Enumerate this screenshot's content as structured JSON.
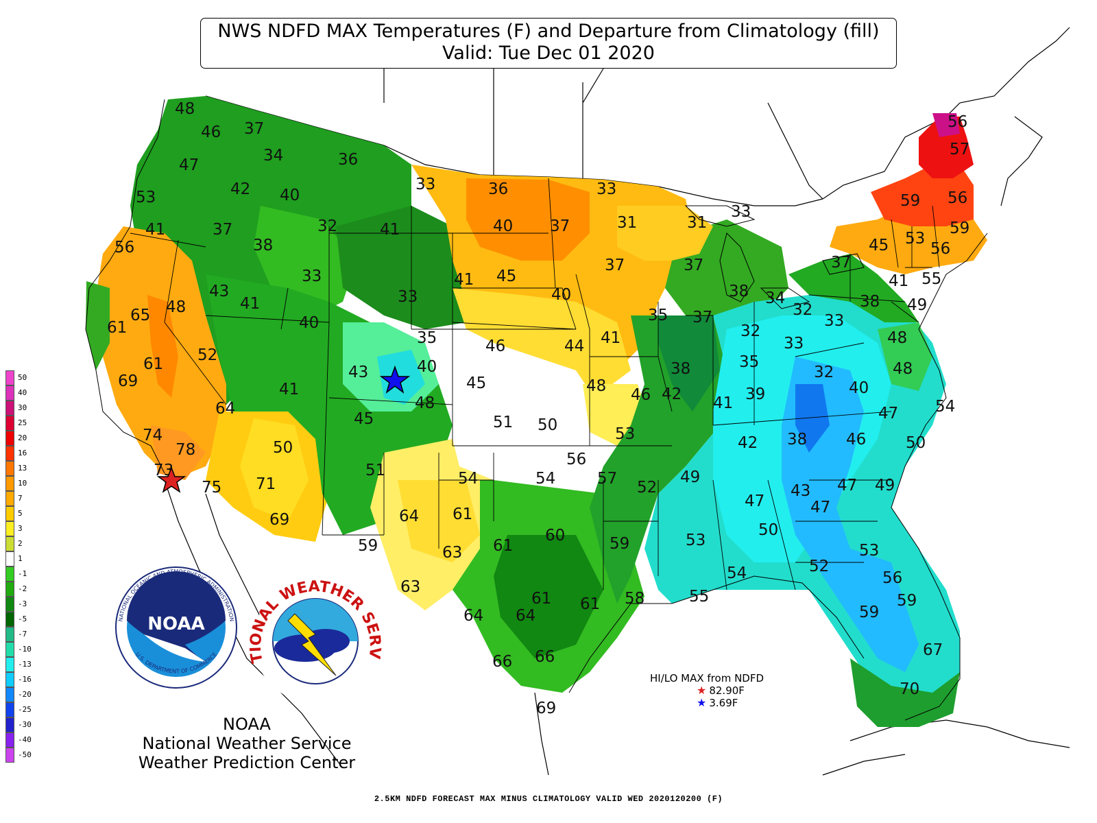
{
  "title": {
    "line1": "NWS NDFD MAX Temperatures (F) and Departure from Climatology (fill)",
    "line2": "Valid: Tue Dec 01 2020"
  },
  "legend": {
    "entries": [
      {
        "label": "50",
        "color": "#ee44cc"
      },
      {
        "label": "40",
        "color": "#dd33bb"
      },
      {
        "label": "30",
        "color": "#cc1177"
      },
      {
        "label": "25",
        "color": "#dd0033"
      },
      {
        "label": "20",
        "color": "#ee0000"
      },
      {
        "label": "16",
        "color": "#ff3300"
      },
      {
        "label": "13",
        "color": "#ff7700"
      },
      {
        "label": "10",
        "color": "#ff9900"
      },
      {
        "label": "7",
        "color": "#ffaa00"
      },
      {
        "label": "5",
        "color": "#ffcc00"
      },
      {
        "label": "3",
        "color": "#ffee22"
      },
      {
        "label": "2",
        "color": "#ccdd33"
      },
      {
        "label": "1",
        "color": "#ffffff"
      },
      {
        "label": "-1",
        "color": "#33cc22"
      },
      {
        "label": "-2",
        "color": "#22aa11"
      },
      {
        "label": "-3",
        "color": "#118811"
      },
      {
        "label": "-5",
        "color": "#006600"
      },
      {
        "label": "-7",
        "color": "#22bb88"
      },
      {
        "label": "-10",
        "color": "#22ddaa"
      },
      {
        "label": "-13",
        "color": "#22eeee"
      },
      {
        "label": "-16",
        "color": "#11ccff"
      },
      {
        "label": "-20",
        "color": "#1188ff"
      },
      {
        "label": "-25",
        "color": "#1144ee"
      },
      {
        "label": "-30",
        "color": "#2222cc"
      },
      {
        "label": "-40",
        "color": "#8822ee"
      },
      {
        "label": "-50",
        "color": "#cc44ee"
      }
    ]
  },
  "temperatures": [
    {
      "text": "48"
    },
    {
      "text": "46"
    },
    {
      "text": "37"
    },
    {
      "text": "47"
    },
    {
      "text": "34"
    },
    {
      "text": "36"
    },
    {
      "text": "53"
    },
    {
      "text": "42"
    },
    {
      "text": "40"
    },
    {
      "text": "33"
    },
    {
      "text": "36"
    },
    {
      "text": "33"
    },
    {
      "text": "56"
    },
    {
      "text": "57"
    },
    {
      "text": "41"
    },
    {
      "text": "37"
    },
    {
      "text": "32"
    },
    {
      "text": "41"
    },
    {
      "text": "40"
    },
    {
      "text": "37"
    },
    {
      "text": "31"
    },
    {
      "text": "31"
    },
    {
      "text": "33"
    },
    {
      "text": "59"
    },
    {
      "text": "56"
    },
    {
      "text": "56"
    },
    {
      "text": "38"
    },
    {
      "text": "53"
    },
    {
      "text": "59"
    },
    {
      "text": "45"
    },
    {
      "text": "56"
    },
    {
      "text": "33"
    },
    {
      "text": "41"
    },
    {
      "text": "45"
    },
    {
      "text": "37"
    },
    {
      "text": "37"
    },
    {
      "text": "37"
    },
    {
      "text": "41"
    },
    {
      "text": "55"
    },
    {
      "text": "43"
    },
    {
      "text": "41"
    },
    {
      "text": "33"
    },
    {
      "text": "40"
    },
    {
      "text": "38"
    },
    {
      "text": "34"
    },
    {
      "text": "32"
    },
    {
      "text": "38"
    },
    {
      "text": "49"
    },
    {
      "text": "65"
    },
    {
      "text": "48"
    },
    {
      "text": "35"
    },
    {
      "text": "37"
    },
    {
      "text": "33"
    },
    {
      "text": "61"
    },
    {
      "text": "40"
    },
    {
      "text": "32"
    },
    {
      "text": "33"
    },
    {
      "text": "48"
    },
    {
      "text": "35"
    },
    {
      "text": "46"
    },
    {
      "text": "44"
    },
    {
      "text": "41"
    },
    {
      "text": "52"
    },
    {
      "text": "61"
    },
    {
      "text": "43"
    },
    {
      "text": "40"
    },
    {
      "text": "38"
    },
    {
      "text": "35"
    },
    {
      "text": "32"
    },
    {
      "text": "48"
    },
    {
      "text": "69"
    },
    {
      "text": "45"
    },
    {
      "text": "48"
    },
    {
      "text": "42"
    },
    {
      "text": "40"
    },
    {
      "text": "41"
    },
    {
      "text": "48"
    },
    {
      "text": "46"
    },
    {
      "text": "41"
    },
    {
      "text": "39"
    },
    {
      "text": "54"
    },
    {
      "text": "64"
    },
    {
      "text": "45"
    },
    {
      "text": "51"
    },
    {
      "text": "50"
    },
    {
      "text": "47"
    },
    {
      "text": "74"
    },
    {
      "text": "53"
    },
    {
      "text": "42"
    },
    {
      "text": "38"
    },
    {
      "text": "46"
    },
    {
      "text": "50"
    },
    {
      "text": "78"
    },
    {
      "text": "50"
    },
    {
      "text": "56"
    },
    {
      "text": "73"
    },
    {
      "text": "51"
    },
    {
      "text": "54"
    },
    {
      "text": "54"
    },
    {
      "text": "57"
    },
    {
      "text": "49"
    },
    {
      "text": "71"
    },
    {
      "text": "75"
    },
    {
      "text": "52"
    },
    {
      "text": "43"
    },
    {
      "text": "47"
    },
    {
      "text": "49"
    },
    {
      "text": "47"
    },
    {
      "text": "47"
    },
    {
      "text": "69"
    },
    {
      "text": "64"
    },
    {
      "text": "61"
    },
    {
      "text": "50"
    },
    {
      "text": "60"
    },
    {
      "text": "53"
    },
    {
      "text": "59"
    },
    {
      "text": "61"
    },
    {
      "text": "59"
    },
    {
      "text": "63"
    },
    {
      "text": "53"
    },
    {
      "text": "52"
    },
    {
      "text": "54"
    },
    {
      "text": "56"
    },
    {
      "text": "63"
    },
    {
      "text": "61"
    },
    {
      "text": "58"
    },
    {
      "text": "55"
    },
    {
      "text": "61"
    },
    {
      "text": "59"
    },
    {
      "text": "64"
    },
    {
      "text": "64"
    },
    {
      "text": "59"
    },
    {
      "text": "66"
    },
    {
      "text": "66"
    },
    {
      "text": "67"
    },
    {
      "text": "69"
    },
    {
      "text": "70"
    }
  ],
  "markers": {
    "hi_star_color": "#dd2222",
    "lo_star_color": "#1111ee"
  },
  "hilo": {
    "title": "HI/LO MAX from NDFD",
    "hi_value": "82.90F",
    "lo_value": "3.69F"
  },
  "logos": {
    "noaa_text": "NOAA",
    "noaa_ring_text": "NATIONAL OCEANIC AND ATMOSPHERIC ADMINISTRATION",
    "noaa_ring_bottom": "U.S. DEPARTMENT OF COMMERCE",
    "nws_ring_text": "NATIONAL WEATHER SERVICE"
  },
  "credits": {
    "line1": "NOAA",
    "line2": "National Weather Service",
    "line3": "Weather Prediction Center"
  },
  "footer": "2.5KM NDFD FORECAST MAX MINUS CLIMATOLOGY VALID WED 2020120200 (F)"
}
